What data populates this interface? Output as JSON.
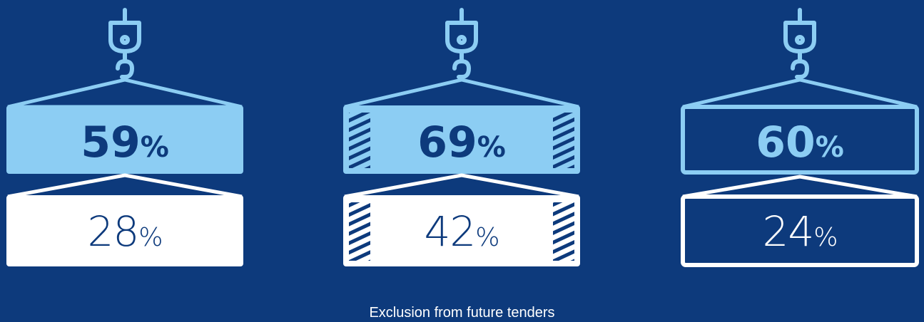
{
  "colors": {
    "background": "#0d3a7c",
    "light_blue": "#8ccdf3",
    "white": "#ffffff",
    "dark_text": "#0d3a7c"
  },
  "icons": [
    "crane-hook-icon",
    "container-stack-icon"
  ],
  "stacks": [
    {
      "style": "solid",
      "top_value": "59",
      "top_unit": "%",
      "bottom_value": "28",
      "bottom_unit": "%"
    },
    {
      "style": "striped",
      "top_value": "69",
      "top_unit": "%",
      "bottom_value": "42",
      "bottom_unit": "%"
    },
    {
      "style": "outline",
      "top_value": "60",
      "top_unit": "%",
      "bottom_value": "24",
      "bottom_unit": "%"
    }
  ],
  "caption": "Exclusion from future tenders"
}
